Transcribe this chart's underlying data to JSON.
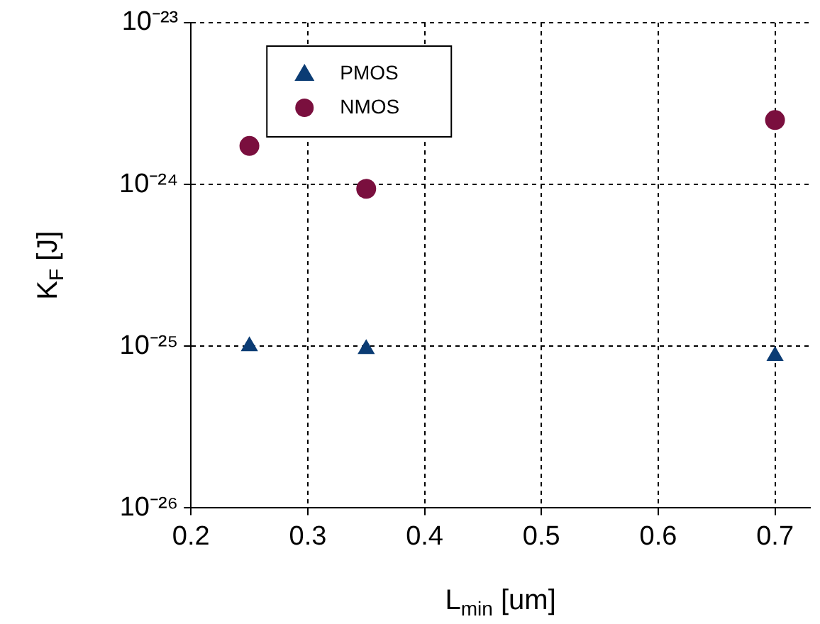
{
  "chart_data": {
    "type": "scatter",
    "xlabel": "L$_{min}$ [um]",
    "ylabel": "K$_{F}$ [J]",
    "log": "y",
    "grid": true,
    "legend": "top left",
    "xlim": [
      0.2,
      0.73
    ],
    "xticks": [
      0.2,
      0.3,
      0.4,
      0.5,
      0.6,
      0.7
    ],
    "ylim": [
      1e-26,
      1e-23
    ],
    "yticks": [
      {
        "value": 1e-26,
        "label": "10⁻²⁶"
      },
      {
        "value": 1e-25,
        "label": "10⁻²⁵"
      },
      {
        "value": 1e-24,
        "label": "10⁻²⁴"
      },
      {
        "value": 1e-23,
        "label": "10⁻²³"
      }
    ],
    "series": [
      {
        "name": "PMOS",
        "color": "#0b3c74",
        "marker": "triangle",
        "x": [
          0.25,
          0.35,
          0.7
        ],
        "values": [
          1e-25,
          9.6e-26,
          8.7e-26
        ]
      },
      {
        "name": "NMOS",
        "color": "#7a0f3e",
        "marker": "circle",
        "x": [
          0.25,
          0.35,
          0.7
        ],
        "values": [
          1.73e-24,
          9.4e-25,
          2.5e-24
        ]
      }
    ]
  }
}
